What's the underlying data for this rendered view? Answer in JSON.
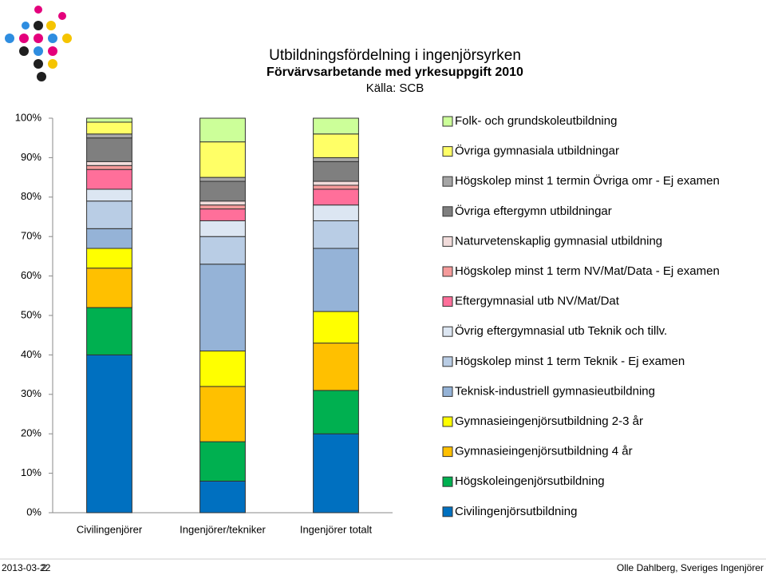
{
  "chart_data": {
    "type": "stacked_bar",
    "title": "Utbildningsfördelning  i ingenjörsyrken",
    "subtitle": "Förvärvsarbetande med yrkesuppgift 2010",
    "source": "Källa: SCB",
    "categories": [
      "Civilingenjörer",
      "Ingenjörer/tekniker",
      "Ingenjörer totalt"
    ],
    "ylim": [
      0,
      100
    ],
    "yticks": [
      {
        "value": 0,
        "label": "0%"
      },
      {
        "value": 10,
        "label": "10%"
      },
      {
        "value": 20,
        "label": "20%"
      },
      {
        "value": 30,
        "label": "30%"
      },
      {
        "value": 40,
        "label": "40%"
      },
      {
        "value": 50,
        "label": "50%"
      },
      {
        "value": 60,
        "label": "60%"
      },
      {
        "value": 70,
        "label": "70%"
      },
      {
        "value": 80,
        "label": "80%"
      },
      {
        "value": 90,
        "label": "90%"
      },
      {
        "value": 100,
        "label": "100%"
      }
    ],
    "grid": false,
    "legend": "right",
    "series": [
      {
        "name": "Civilingenjörsutbildning",
        "color": "#0070c0",
        "values": [
          40,
          8,
          20
        ]
      },
      {
        "name": "Högskoleingenjörsutbildning",
        "color": "#00b050",
        "values": [
          12,
          10,
          11
        ]
      },
      {
        "name": "Gymnasieingenjörsutbildning 4 år",
        "color": "#ffc000",
        "values": [
          10,
          14,
          12
        ]
      },
      {
        "name": "Gymnasieingenjörsutbildning 2-3 år",
        "color": "#ffff00",
        "values": [
          5,
          9,
          8
        ]
      },
      {
        "name": "Teknisk-industriell gymnasieutbildning",
        "color": "#95b3d7",
        "values": [
          5,
          22,
          16
        ]
      },
      {
        "name": "Högskolep minst 1 term Teknik - Ej examen",
        "color": "#b9cde5",
        "values": [
          7,
          7,
          7
        ]
      },
      {
        "name": "Övrig eftergymnasial utb Teknik och tillv.",
        "color": "#dce6f2",
        "values": [
          3,
          4,
          4
        ]
      },
      {
        "name": "Eftergymnasial utb NV/Mat/Dat",
        "color": "#ff6f9a",
        "values": [
          5,
          3,
          4
        ]
      },
      {
        "name": "Högskolep minst 1 term NV/Mat/Data - Ej examen",
        "color": "#f59a9a",
        "values": [
          1,
          1,
          1
        ]
      },
      {
        "name": "Naturvetenskaplig gymnasial utbildning",
        "color": "#f2dcdb",
        "values": [
          1,
          1,
          1
        ]
      },
      {
        "name": "Övriga eftergymn utbildningar",
        "color": "#7f7f7f",
        "values": [
          6,
          5,
          5
        ]
      },
      {
        "name": "Högskolep minst 1 termin Övriga omr - Ej examen",
        "color": "#a6a6a6",
        "values": [
          1,
          1,
          1
        ]
      },
      {
        "name": "Övriga gymnasiala utbildningar",
        "color": "#ffff66",
        "values": [
          3,
          9,
          6
        ]
      },
      {
        "name": "Folk- och grundskoleutbildning",
        "color": "#ccff99",
        "values": [
          1,
          6,
          4
        ]
      }
    ]
  },
  "footer": {
    "date": "2013-03-22",
    "page": "2",
    "author": "Olle Dahlberg, Sveriges Ingenjörer"
  }
}
